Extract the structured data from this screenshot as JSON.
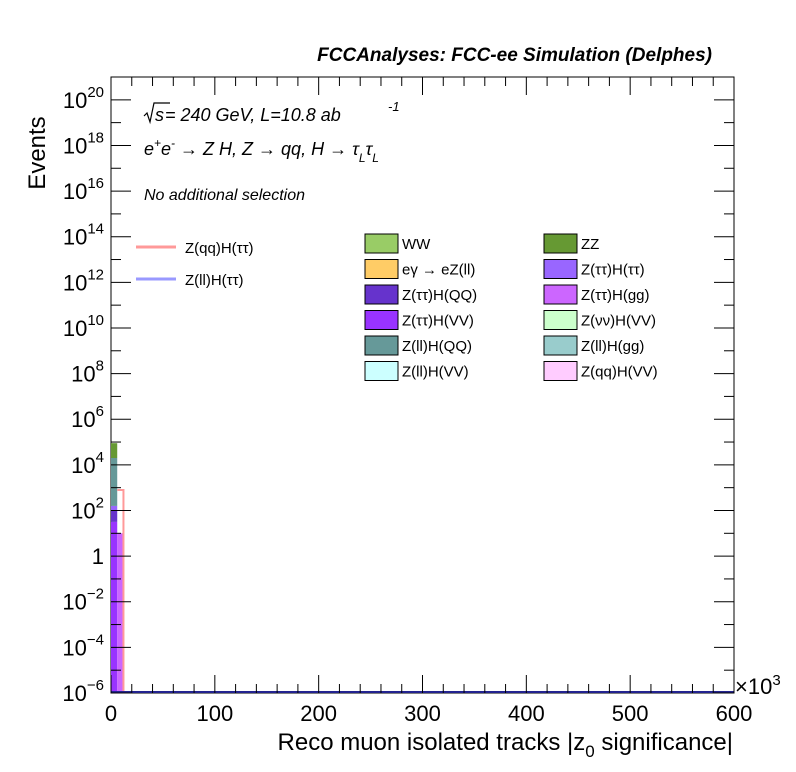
{
  "header": {
    "title": "FCCAnalyses: FCC-ee Simulation (Delphes)"
  },
  "annotations": {
    "sqrt_s_prefix": "√s",
    "energy_lumi": " = 240 GeV, L=10.8 ab",
    "lumi_exp": "-1",
    "process_line": "e⁺e⁻ → Z H, Z → qq, H → τ_L τ_L",
    "selection": "No additional selection"
  },
  "chart_data": {
    "type": "histogram",
    "title": "FCCAnalyses: FCC-ee Simulation (Delphes)",
    "xlabel": "Reco muon isolated tracks |z_0 significance|",
    "ylabel": "Events",
    "x_multiplier": "×10^3",
    "xlim": [
      0,
      600
    ],
    "ylim_log10": [
      -6,
      21
    ],
    "y_scale": "log",
    "x_ticks": [
      "0",
      "100",
      "200",
      "300",
      "400",
      "500",
      "600"
    ],
    "y_ticks": [
      {
        "log": -6,
        "base": "10",
        "exp": "−6"
      },
      {
        "log": -4,
        "base": "10",
        "exp": "−4"
      },
      {
        "log": -2,
        "base": "10",
        "exp": "−2"
      },
      {
        "log": 0,
        "base": "1",
        "exp": ""
      },
      {
        "log": 2,
        "base": "10",
        "exp": "2"
      },
      {
        "log": 4,
        "base": "10",
        "exp": "4"
      },
      {
        "log": 6,
        "base": "10",
        "exp": "6"
      },
      {
        "log": 8,
        "base": "10",
        "exp": "8"
      },
      {
        "log": 10,
        "base": "10",
        "exp": "10"
      },
      {
        "log": 12,
        "base": "10",
        "exp": "12"
      },
      {
        "log": 14,
        "base": "10",
        "exp": "14"
      },
      {
        "log": 16,
        "base": "10",
        "exp": "16"
      },
      {
        "log": 18,
        "base": "10",
        "exp": "18"
      },
      {
        "log": 20,
        "base": "10",
        "exp": "20"
      }
    ],
    "stacked_backgrounds": [
      {
        "name": "WW",
        "color": "#99cc66"
      },
      {
        "name": "ZZ",
        "color": "#669933"
      },
      {
        "name": "eγ → eZ(ll)",
        "color": "#ffcc66"
      },
      {
        "name": "Z(ττ)H(ττ)",
        "color": "#9966ff"
      },
      {
        "name": "Z(ττ)H(QQ)",
        "color": "#6633cc"
      },
      {
        "name": "Z(ττ)H(gg)",
        "color": "#cc66ff"
      },
      {
        "name": "Z(ττ)H(VV)",
        "color": "#9933ff"
      },
      {
        "name": "Z(νν)H(VV)",
        "color": "#ccffcc"
      },
      {
        "name": "Z(ll)H(QQ)",
        "color": "#669999"
      },
      {
        "name": "Z(ll)H(gg)",
        "color": "#99cccc"
      },
      {
        "name": "Z(ll)H(VV)",
        "color": "#ccffff"
      },
      {
        "name": "Z(qq)H(VV)",
        "color": "#ffccff"
      }
    ],
    "signals": [
      {
        "name": "Z(qq)H(ττ)",
        "color": "#ff9999"
      },
      {
        "name": "Z(ll)H(ττ)",
        "color": "#9999ff"
      }
    ],
    "bars": [
      {
        "x0": 0,
        "x1": 6,
        "segments": [
          {
            "component": "Z(ττ)H(VV)",
            "log_lo": -6,
            "log_hi": 1.5
          },
          {
            "component": "Z(ττ)H(QQ)",
            "log_lo": 1.5,
            "log_hi": 2.0
          },
          {
            "component": "Z(ττ)H(ττ)",
            "log_lo": 2.0,
            "log_hi": 2.2
          },
          {
            "component": "Z(ll)H(QQ)",
            "log_lo": 2.2,
            "log_hi": 4.3
          },
          {
            "component": "ZZ",
            "log_lo": 4.3,
            "log_hi": 4.95
          }
        ]
      },
      {
        "x0": 6,
        "x1": 12,
        "segments": [
          {
            "component": "Z(ττ)H(gg)",
            "log_lo": -6,
            "log_hi": 1.0
          }
        ]
      }
    ],
    "signal_lines": [
      {
        "name": "Z(qq)H(ττ)",
        "x0": 6,
        "x1": 12,
        "log_top": 2.9
      }
    ]
  }
}
